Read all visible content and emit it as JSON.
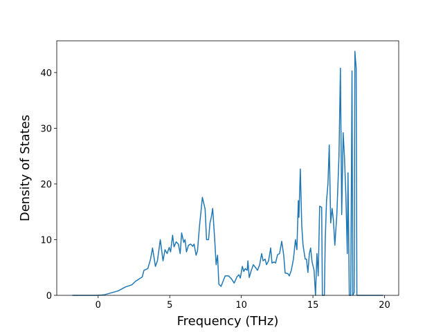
{
  "chart_data": {
    "type": "line",
    "xlabel": "Frequency (THz)",
    "ylabel": "Density of States",
    "xlim": [
      -2.89,
      20.99
    ],
    "ylim": [
      0,
      45.7
    ],
    "xticks": [
      0,
      5,
      10,
      15,
      20
    ],
    "yticks": [
      0,
      10,
      20,
      30,
      40
    ],
    "grid": false,
    "series": [
      {
        "color": "#1f77b4",
        "x": [
          -1.8,
          -1,
          0,
          0.43,
          1.4,
          1.9,
          2.36,
          2.6,
          3.08,
          3.2,
          3.47,
          3.66,
          3.8,
          4.0,
          4.14,
          4.34,
          4.53,
          4.67,
          4.82,
          4.96,
          5.06,
          5.2,
          5.3,
          5.45,
          5.6,
          5.73,
          5.83,
          5.98,
          6.07,
          6.17,
          6.31,
          6.46,
          6.6,
          6.7,
          6.84,
          6.94,
          7.08,
          7.18,
          7.28,
          7.47,
          7.57,
          7.71,
          7.81,
          7.9,
          8.0,
          8.14,
          8.24,
          8.34,
          8.43,
          8.58,
          8.72,
          8.87,
          9.1,
          9.3,
          9.5,
          9.69,
          9.83,
          9.93,
          10.07,
          10.17,
          10.27,
          10.41,
          10.46,
          10.55,
          10.7,
          10.84,
          10.99,
          11.13,
          11.28,
          11.42,
          11.52,
          11.66,
          11.76,
          11.9,
          12.05,
          12.14,
          12.29,
          12.39,
          12.53,
          12.67,
          12.82,
          12.96,
          13.06,
          13.25,
          13.35,
          13.49,
          13.64,
          13.78,
          13.88,
          13.98,
          14.02,
          14.12,
          14.22,
          14.31,
          14.46,
          14.55,
          14.65,
          14.75,
          14.84,
          14.94,
          15.08,
          15.18,
          15.28,
          15.37,
          15.47,
          15.61,
          15.66,
          15.8,
          15.86,
          15.95,
          16.05,
          16.14,
          16.24,
          16.34,
          16.43,
          16.53,
          16.67,
          16.82,
          16.92,
          17.01,
          17.11,
          17.2,
          17.3,
          17.4,
          17.45,
          17.54,
          17.64,
          17.73,
          17.78,
          17.88,
          17.93,
          18.02,
          18.07,
          19.9
        ],
        "values": [
          0,
          0,
          0,
          0.1,
          0.8,
          1.5,
          1.9,
          2.5,
          3.3,
          4.5,
          4.8,
          6.5,
          8.5,
          5.2,
          6.2,
          10,
          6.2,
          8.2,
          7.5,
          8.6,
          7.8,
          10.8,
          8.7,
          9.6,
          9.2,
          7.5,
          11.2,
          9.5,
          10,
          7.8,
          9,
          9.2,
          8.8,
          9.2,
          7.2,
          8,
          12.5,
          15,
          17.6,
          15.5,
          10,
          10,
          13,
          14,
          15.6,
          10,
          5.5,
          7.2,
          2,
          1.6,
          2.5,
          3.5,
          3.5,
          3,
          2.2,
          3.3,
          3.7,
          3.1,
          5.2,
          4.3,
          4.8,
          4.5,
          6.2,
          3.2,
          4.5,
          5.5,
          5,
          4.5,
          5.5,
          7.5,
          6.2,
          6.5,
          5.5,
          6.2,
          8.5,
          5.8,
          6,
          5.8,
          7.3,
          7.5,
          9.7,
          7.2,
          4,
          3.9,
          3.5,
          4.5,
          6.5,
          10,
          8.2,
          17,
          14,
          22.7,
          12.5,
          9,
          6.5,
          6.5,
          4.1,
          7.5,
          8.5,
          6,
          4.5,
          0,
          7.5,
          3.5,
          16,
          15.8,
          0,
          0,
          10,
          17,
          20,
          27,
          13,
          15.6,
          13.5,
          9,
          14.5,
          25,
          40.8,
          14.5,
          29.2,
          25,
          18,
          7.5,
          22,
          0,
          0,
          40.3,
          0,
          0.5,
          43.8,
          40.8,
          0,
          0
        ]
      }
    ]
  }
}
